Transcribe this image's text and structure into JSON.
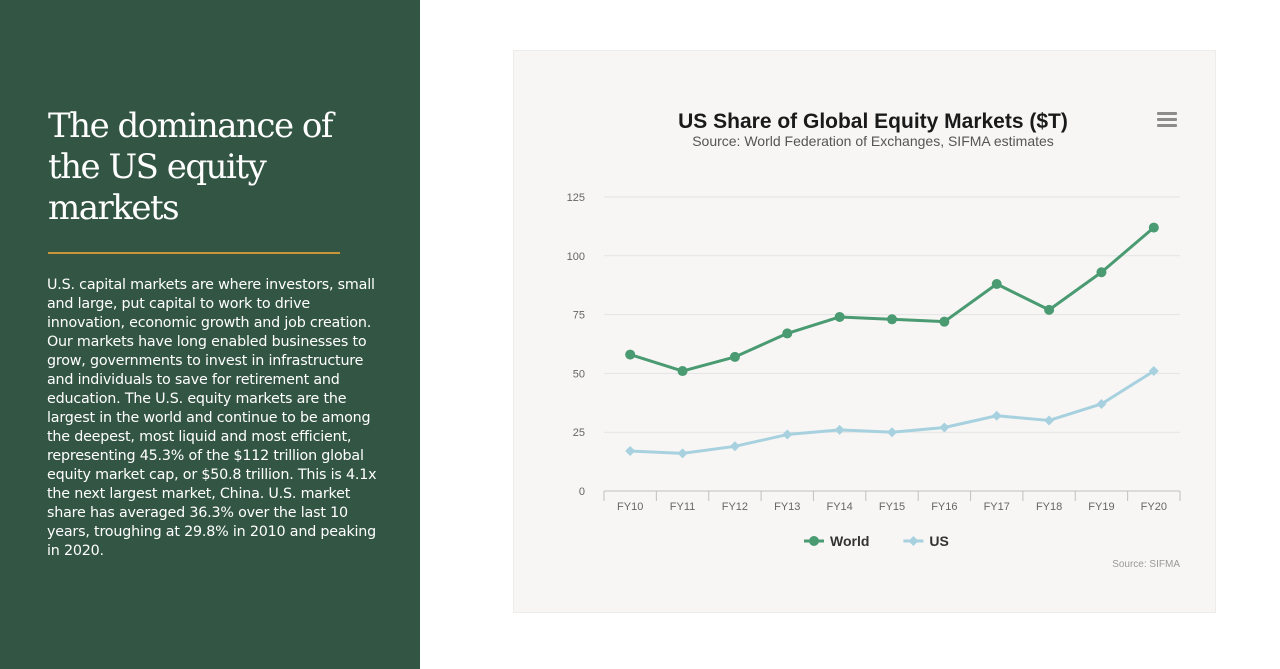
{
  "slide": {
    "title": "The dominance of the US equity markets",
    "body": "U.S. capital markets are where investors, small and large, put capital to work to drive innovation, economic growth and job creation. Our markets have long enabled businesses to grow, governments to invest in infrastructure and individuals to save for retirement and education. The U.S. equity markets are the largest in the world and continue to be among the deepest, most liquid and most efficient, representing 45.3% of the $112 trillion global equity market cap, or $50.8 trillion. This is 4.1x the next largest market, China. U.S. market share has averaged 36.3% over the last 10 years, troughing at 29.8% in 2010 and peaking in 2020.",
    "accent_color": "#c9953a",
    "panel_color": "#335543"
  },
  "chart_data": {
    "type": "line",
    "title": "US Share of Global Equity Markets ($T)",
    "subtitle": "Source: World Federation of Exchanges, SIFMA estimates",
    "credit": "Source: SIFMA",
    "menu_icon": "hamburger-menu-icon",
    "categories": [
      "FY10",
      "FY11",
      "FY12",
      "FY13",
      "FY14",
      "FY15",
      "FY16",
      "FY17",
      "FY18",
      "FY19",
      "FY20"
    ],
    "ylim": [
      0,
      125
    ],
    "yticks": [
      0,
      25,
      50,
      75,
      100,
      125
    ],
    "grid": true,
    "legend_position": "bottom-center",
    "series": [
      {
        "name": "World",
        "color": "#4a9a72",
        "marker": "circle",
        "values": [
          58,
          51,
          57,
          67,
          74,
          73,
          72,
          88,
          77,
          93,
          112
        ]
      },
      {
        "name": "US",
        "color": "#a7d1df",
        "marker": "diamond",
        "values": [
          17,
          16,
          19,
          24,
          26,
          25,
          27,
          32,
          30,
          37,
          51
        ]
      }
    ]
  }
}
